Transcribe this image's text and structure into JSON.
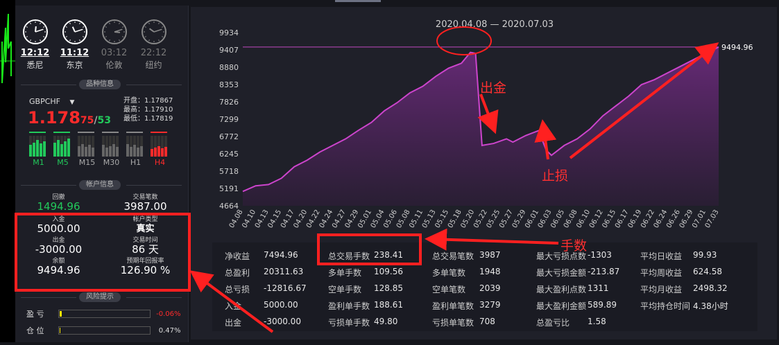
{
  "clocks": [
    {
      "time": "12:12",
      "city": "悉尼",
      "active": true,
      "h": 12,
      "m": 12
    },
    {
      "time": "11:12",
      "city": "东京",
      "active": true,
      "h": 11,
      "m": 12
    },
    {
      "time": "03:12",
      "city": "伦敦",
      "active": false,
      "h": 3,
      "m": 12
    },
    {
      "time": "22:12",
      "city": "纽约",
      "active": false,
      "h": 22,
      "m": 12
    }
  ],
  "sections": {
    "instrument": "品种信息",
    "account": "帐户信息",
    "risk": "风险提示"
  },
  "instrument": {
    "symbol": "GBPCHF",
    "price_main": "1.178",
    "price_pip_bid": "75",
    "price_sep": "/",
    "price_pip_ask": "53",
    "open_label": "开盘：",
    "open_value": "1.17867",
    "high_label": "最高：",
    "high_value": "1.17910",
    "low_label": "最低：",
    "low_value": "1.17819",
    "timeframes": [
      "M1",
      "M5",
      "M15",
      "M30",
      "H1",
      "H4"
    ],
    "timeframe_colors": [
      "#22c95b",
      "#22c95b",
      "#888888",
      "#888888",
      "#888888",
      "#ff2b2b"
    ],
    "timeframe_levels": [
      0.8,
      0.85,
      0.6,
      0.6,
      0.6,
      0.5
    ]
  },
  "account": {
    "drawdown_label": "回撤",
    "drawdown_value": "1494.96",
    "trades_label": "交易笔数",
    "trades_value": "3987.00",
    "deposit_label": "入金",
    "deposit_value": "5000.00",
    "type_label": "帐户类型",
    "type_value": "真实",
    "withdraw_label": "出金",
    "withdraw_value": "-3000.00",
    "time_label": "交易时间",
    "time_value": "86 天",
    "balance_label": "余额",
    "balance_value": "9494.96",
    "annual_label": "预期年回报率",
    "annual_value": "126.90 %"
  },
  "risk": {
    "profit_label": "盈  亏",
    "profit_value": "-0.06%",
    "position_label": "仓  位",
    "position_value": "0.47%"
  },
  "chart_data": {
    "type": "area",
    "title": "2020.04.08 — 2020.07.03",
    "y_ticks": [
      "9934",
      "9407",
      "8880",
      "8353",
      "7826",
      "7299",
      "6772",
      "6245",
      "5718",
      "5191",
      "4664"
    ],
    "ylim": [
      4664,
      9934
    ],
    "x_ticks": [
      "04.08",
      "04.10",
      "04.13",
      "04.15",
      "04.17",
      "04.20",
      "04.22",
      "04.24",
      "04.27",
      "04.29",
      "05.01",
      "05.04",
      "05.06",
      "05.08",
      "05.11",
      "05.13",
      "05.15",
      "05.18",
      "05.20",
      "05.22",
      "05.25",
      "05.27",
      "05.29",
      "06.01",
      "06.03",
      "06.05",
      "06.08",
      "06.10",
      "06.12",
      "06.15",
      "06.17",
      "06.19",
      "06.22",
      "06.24",
      "06.26",
      "06.29",
      "07.01",
      "07.03"
    ],
    "end_label": "9494.96",
    "series": [
      {
        "values": [
          [
            0,
            5100
          ],
          [
            1,
            5270
          ],
          [
            2,
            5310
          ],
          [
            3,
            5500
          ],
          [
            4,
            5850
          ],
          [
            5,
            6050
          ],
          [
            6,
            6300
          ],
          [
            7,
            6500
          ],
          [
            8,
            6700
          ],
          [
            9,
            6960
          ],
          [
            10,
            7200
          ],
          [
            11,
            7550
          ],
          [
            12,
            7800
          ],
          [
            13,
            8100
          ],
          [
            14,
            8300
          ],
          [
            15,
            8600
          ],
          [
            16,
            8850
          ],
          [
            17,
            9000
          ],
          [
            17.7,
            9330
          ],
          [
            18.1,
            9300
          ],
          [
            18.6,
            6500
          ],
          [
            19.5,
            6560
          ],
          [
            20.5,
            6700
          ],
          [
            21,
            6600
          ],
          [
            22,
            6800
          ],
          [
            23,
            6950
          ],
          [
            23.6,
            6350
          ],
          [
            24,
            6200
          ],
          [
            25,
            6500
          ],
          [
            26,
            6700
          ],
          [
            27,
            7000
          ],
          [
            28,
            7400
          ],
          [
            29,
            7700
          ],
          [
            30,
            8000
          ],
          [
            31,
            8350
          ],
          [
            32,
            8500
          ],
          [
            33,
            8700
          ],
          [
            34,
            8900
          ],
          [
            35,
            9100
          ],
          [
            36,
            9300
          ],
          [
            37,
            9494.96
          ]
        ]
      }
    ],
    "colors": {
      "line": "#cc44cc",
      "fill_top": "#6a2a7a",
      "fill_bottom": "#2a1e34",
      "level_line": "#c048c0"
    }
  },
  "stats": [
    [
      {
        "k": "净收益",
        "v": "7494.96"
      },
      {
        "k": "总盈利",
        "v": "20311.63"
      },
      {
        "k": "总亏损",
        "v": "-12816.67"
      },
      {
        "k": "入金",
        "v": "5000.00"
      },
      {
        "k": "出金",
        "v": "-3000.00"
      }
    ],
    [
      {
        "k": "总交易手数",
        "v": "238.41"
      },
      {
        "k": "多单手数",
        "v": "109.56"
      },
      {
        "k": "空单手数",
        "v": "128.85"
      },
      {
        "k": "盈利单手数",
        "v": "188.61"
      },
      {
        "k": "亏损单手数",
        "v": "49.80"
      }
    ],
    [
      {
        "k": "总交易笔数",
        "v": "3987"
      },
      {
        "k": "多单笔数",
        "v": "1948"
      },
      {
        "k": "空单笔数",
        "v": "2039"
      },
      {
        "k": "盈利单笔数",
        "v": "3279"
      },
      {
        "k": "亏损单笔数",
        "v": "708"
      }
    ],
    [
      {
        "k": "最大亏损点数",
        "v": "-1303"
      },
      {
        "k": "最大亏损金额",
        "v": "-213.87"
      },
      {
        "k": "最大盈利点数",
        "v": "1311"
      },
      {
        "k": "最大盈利金额",
        "v": "589.89"
      },
      {
        "k": "总盈亏比",
        "v": "1.58"
      }
    ],
    [
      {
        "k": "平均日收益",
        "v": "99.93"
      },
      {
        "k": "平均周收益",
        "v": "624.58"
      },
      {
        "k": "平均月收益",
        "v": "2498.32"
      },
      {
        "k": "平均持仓时间",
        "v": "4.38小时"
      }
    ]
  ],
  "annotations": {
    "withdraw": "出金",
    "stoploss": "止损",
    "lots": "手数"
  },
  "accent": "#ff2020"
}
